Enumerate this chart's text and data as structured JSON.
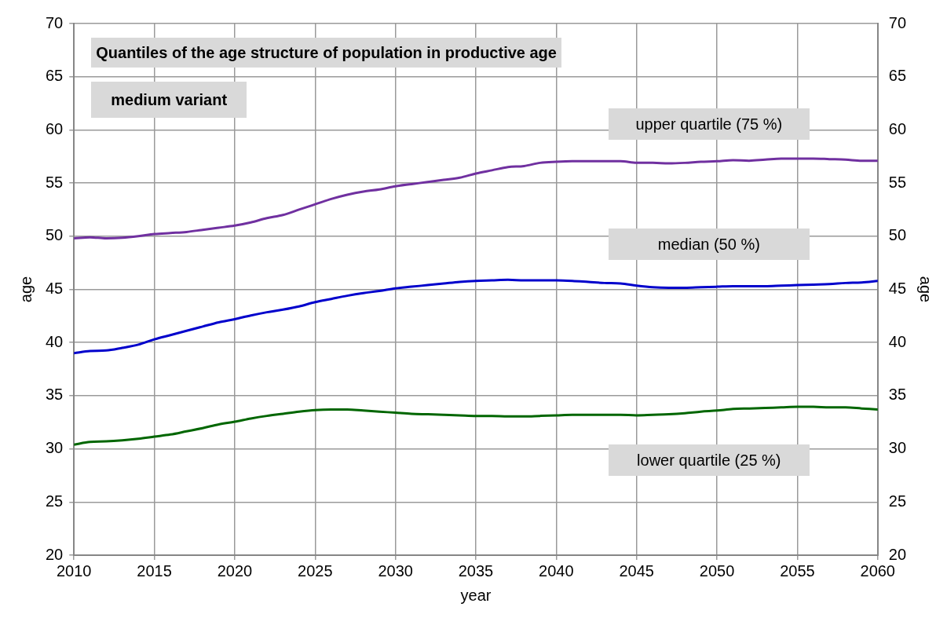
{
  "chart_data": {
    "type": "line",
    "title": "Quantiles of the age structure of population in productive age",
    "subtitle": "medium variant",
    "xlabel": "year",
    "ylabel": "age",
    "y2label": "age",
    "x": [
      2010,
      2011,
      2012,
      2013,
      2014,
      2015,
      2016,
      2017,
      2018,
      2019,
      2020,
      2021,
      2022,
      2023,
      2024,
      2025,
      2026,
      2027,
      2028,
      2029,
      2030,
      2031,
      2032,
      2033,
      2034,
      2035,
      2036,
      2037,
      2038,
      2039,
      2040,
      2041,
      2042,
      2043,
      2044,
      2045,
      2046,
      2047,
      2048,
      2049,
      2050,
      2051,
      2052,
      2053,
      2054,
      2055,
      2056,
      2057,
      2058,
      2059,
      2060
    ],
    "series": [
      {
        "name": "upper quartile (75 %)",
        "color": "#7030a0",
        "values": [
          49.8,
          49.9,
          49.8,
          49.85,
          50.0,
          50.2,
          50.3,
          50.4,
          50.6,
          50.8,
          51.0,
          51.3,
          51.7,
          52.0,
          52.5,
          53.0,
          53.5,
          53.9,
          54.2,
          54.4,
          54.7,
          54.9,
          55.1,
          55.3,
          55.5,
          55.9,
          56.2,
          56.5,
          56.6,
          56.9,
          57.0,
          57.05,
          57.05,
          57.05,
          57.05,
          56.9,
          56.9,
          56.85,
          56.9,
          57.0,
          57.05,
          57.15,
          57.1,
          57.2,
          57.3,
          57.3,
          57.3,
          57.25,
          57.2,
          57.1,
          57.1
        ]
      },
      {
        "name": "median (50 %)",
        "color": "#0000cc",
        "values": [
          39.0,
          39.2,
          39.25,
          39.5,
          39.8,
          40.3,
          40.7,
          41.1,
          41.5,
          41.9,
          42.2,
          42.55,
          42.85,
          43.1,
          43.4,
          43.8,
          44.1,
          44.4,
          44.65,
          44.85,
          45.1,
          45.25,
          45.4,
          45.55,
          45.7,
          45.8,
          45.85,
          45.9,
          45.85,
          45.85,
          45.85,
          45.8,
          45.7,
          45.6,
          45.55,
          45.35,
          45.2,
          45.15,
          45.15,
          45.2,
          45.25,
          45.3,
          45.3,
          45.3,
          45.35,
          45.4,
          45.45,
          45.5,
          45.6,
          45.65,
          45.8
        ]
      },
      {
        "name": "lower quartile (25 %)",
        "color": "#006600",
        "values": [
          30.4,
          30.65,
          30.7,
          30.8,
          30.95,
          31.15,
          31.35,
          31.65,
          31.95,
          32.3,
          32.55,
          32.85,
          33.1,
          33.3,
          33.5,
          33.65,
          33.7,
          33.7,
          33.6,
          33.5,
          33.4,
          33.3,
          33.25,
          33.2,
          33.15,
          33.1,
          33.1,
          33.05,
          33.05,
          33.1,
          33.15,
          33.2,
          33.2,
          33.2,
          33.2,
          33.15,
          33.2,
          33.25,
          33.35,
          33.5,
          33.6,
          33.75,
          33.8,
          33.85,
          33.9,
          33.95,
          33.95,
          33.9,
          33.9,
          33.8,
          33.7
        ]
      }
    ],
    "xlim": [
      2010,
      2060
    ],
    "xticks": [
      2010,
      2015,
      2020,
      2025,
      2030,
      2035,
      2040,
      2045,
      2050,
      2055,
      2060
    ],
    "ylim": [
      20,
      70
    ],
    "yticks": [
      20,
      25,
      30,
      35,
      40,
      45,
      50,
      55,
      60,
      65,
      70
    ],
    "y2lim": [
      20,
      70
    ],
    "y2ticks": [
      20,
      25,
      30,
      35,
      40,
      45,
      50,
      55,
      60,
      65,
      70
    ],
    "grid": true,
    "legend": false,
    "marker": "none",
    "line_style": "solid"
  }
}
